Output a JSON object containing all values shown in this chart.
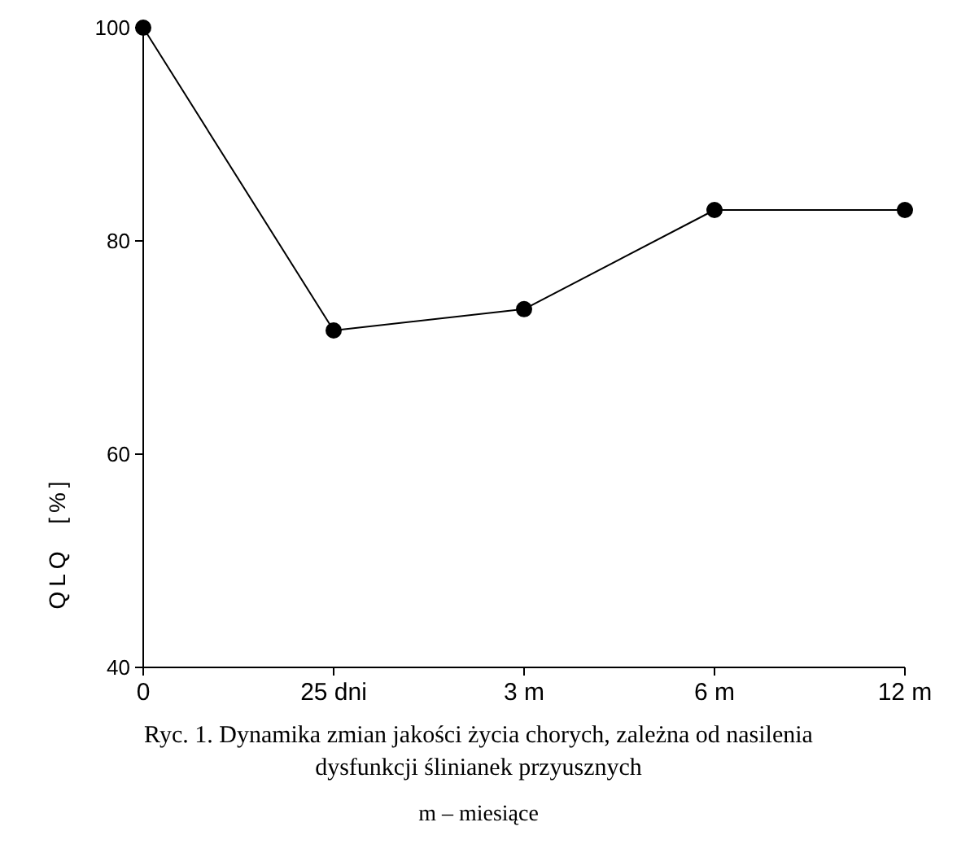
{
  "chart_data": {
    "type": "line",
    "title": "Ryc. 1. Dynamika zmian jakości życia chorych, zależna od nasilenia dysfunkcji ślinianek przyusznych",
    "ylabel": "QLQ  [%]",
    "annotations": [
      "m – miesiące"
    ],
    "categories": [
      "0",
      "25 dni",
      "3 m",
      "6 m",
      "12 m"
    ],
    "series": [
      {
        "color": "#000000",
        "values": [
          100,
          71.6,
          73.6,
          82.9,
          82.9
        ]
      }
    ],
    "ylim": [
      40,
      100
    ],
    "yticks": [
      40,
      60,
      80,
      100
    ],
    "marker": "circle",
    "line_style": "solid",
    "grid": false
  }
}
